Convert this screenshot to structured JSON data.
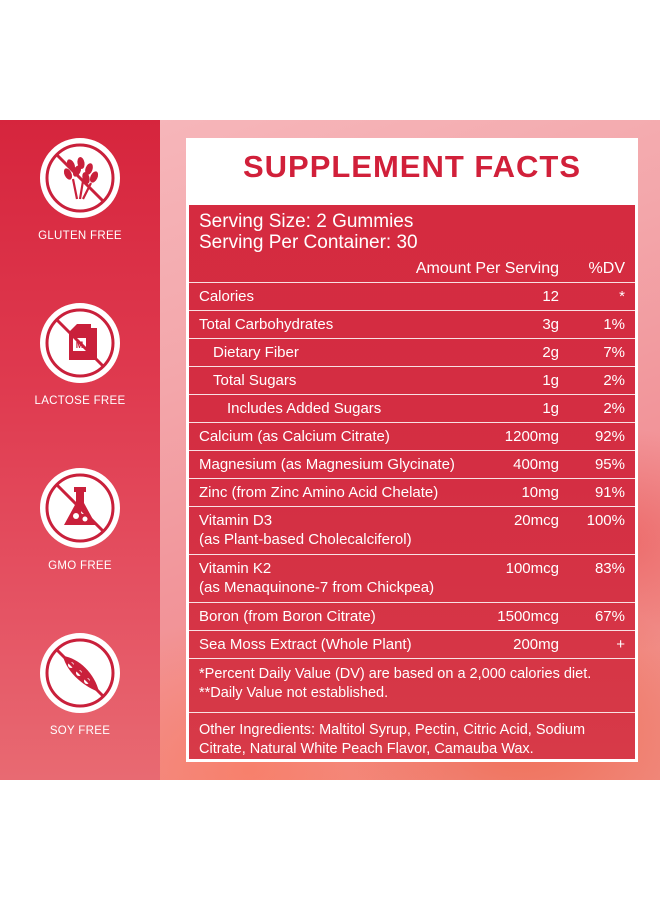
{
  "badges": [
    {
      "icon": "wheat-crossed-icon",
      "label": "GLUTEN FREE"
    },
    {
      "icon": "milk-carton-crossed-icon",
      "label": "LACTOSE FREE"
    },
    {
      "icon": "flask-crossed-icon",
      "label": "GMO FREE"
    },
    {
      "icon": "soybean-crossed-icon",
      "label": "SOY FREE"
    }
  ],
  "facts": {
    "title": "SUPPLEMENT FACTS",
    "serving_size": "Serving Size: 2 Gummies",
    "serving_per_container": "Serving Per Container: 30",
    "header": {
      "amount": "Amount Per Serving",
      "dv": "%DV"
    },
    "rows": [
      {
        "name": "Calories",
        "amount": "12",
        "dv": "*"
      },
      {
        "name": "Total Carbohydrates",
        "amount": "3g",
        "dv": "1%"
      },
      {
        "name": "Dietary Fiber",
        "amount": "2g",
        "dv": "7%"
      },
      {
        "name": "Total Sugars",
        "amount": "1g",
        "dv": "2%"
      },
      {
        "name": "Includes Added Sugars",
        "amount": "1g",
        "dv": "2%"
      },
      {
        "name": "Calcium (as Calcium Citrate)",
        "amount": "1200mg",
        "dv": "92%"
      },
      {
        "name": "Magnesium (as Magnesium Glycinate)",
        "amount": "400mg",
        "dv": "95%"
      },
      {
        "name": "Zinc (from Zinc Amino Acid Chelate)",
        "amount": "10mg",
        "dv": "91%"
      },
      {
        "name": "Vitamin D3",
        "name2": "(as Plant-based Cholecalciferol)",
        "amount": "20mcg",
        "dv": "100%"
      },
      {
        "name": "Vitamin K2",
        "name2": "(as Menaquinone-7 from Chickpea)",
        "amount": "100mcg",
        "dv": "83%"
      },
      {
        "name": "Boron (from Boron Citrate)",
        "amount": "1500mcg",
        "dv": "67%"
      },
      {
        "name": "Sea Moss Extract (Whole Plant)",
        "amount": "200mg",
        "dv": "+"
      }
    ],
    "footnote_1": "*Percent Daily Value (DV) are based on a 2,000 calories diet.",
    "footnote_2": "**Daily Value not established.",
    "other_ingredients": "Other Ingredients: Maltitol Syrup, Pectin, Citric Acid, Sodium Citrate, Natural White Peach Flavor, Camauba Wax."
  },
  "colors": {
    "brand_red": "#d42e43",
    "title_red": "#d1203a",
    "panel_left": "#d6253d"
  }
}
